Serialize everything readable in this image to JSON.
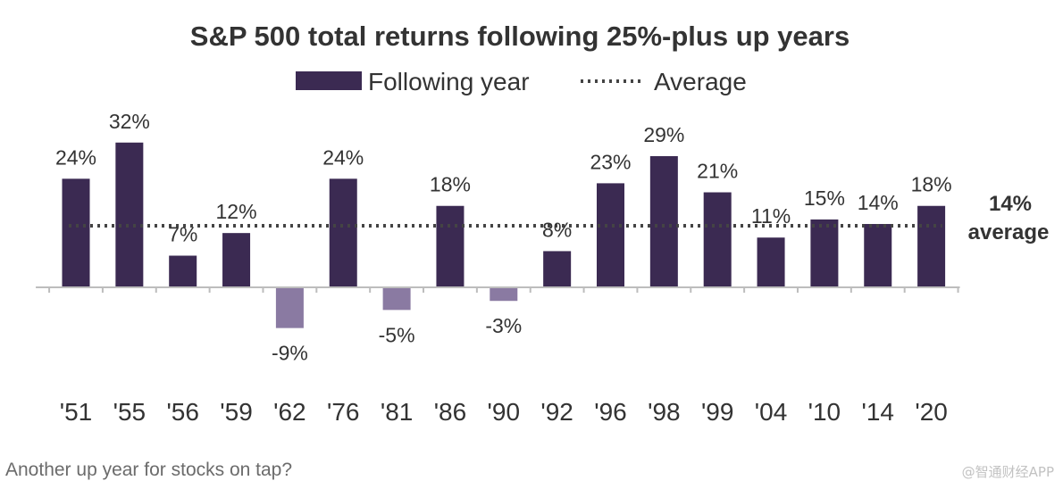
{
  "chart_data": {
    "type": "bar",
    "title": "S&P 500 total returns following 25%-plus up years",
    "legend": {
      "bar_label": "Following year",
      "line_label": "Average",
      "placement": "top-center"
    },
    "categories": [
      "'51",
      "'55",
      "'56",
      "'59",
      "'62",
      "'76",
      "'81",
      "'86",
      "'90",
      "'92",
      "'96",
      "'98",
      "'99",
      "'04",
      "'10",
      "'14",
      "'20"
    ],
    "values": [
      24,
      32,
      7,
      12,
      -9,
      24,
      -5,
      18,
      -3,
      8,
      23,
      29,
      21,
      11,
      15,
      14,
      18
    ],
    "data_labels": [
      "24%",
      "32%",
      "7%",
      "12%",
      "-9%",
      "24%",
      "-5%",
      "18%",
      "-3%",
      "8%",
      "23%",
      "29%",
      "21%",
      "11%",
      "15%",
      "14%",
      "18%"
    ],
    "average": 14,
    "average_label_value": "14%",
    "average_label_text": "average",
    "colors": {
      "positive": "#3b2a52",
      "negative": "#8a7aa2",
      "average_line": "#444444",
      "axis": "#bdbdbd"
    },
    "xlabel": "",
    "ylabel": "",
    "ylim": [
      -16,
      36
    ],
    "grid": false
  },
  "caption": "Another up year for stocks on tap?",
  "watermark": "@智通财经APP"
}
